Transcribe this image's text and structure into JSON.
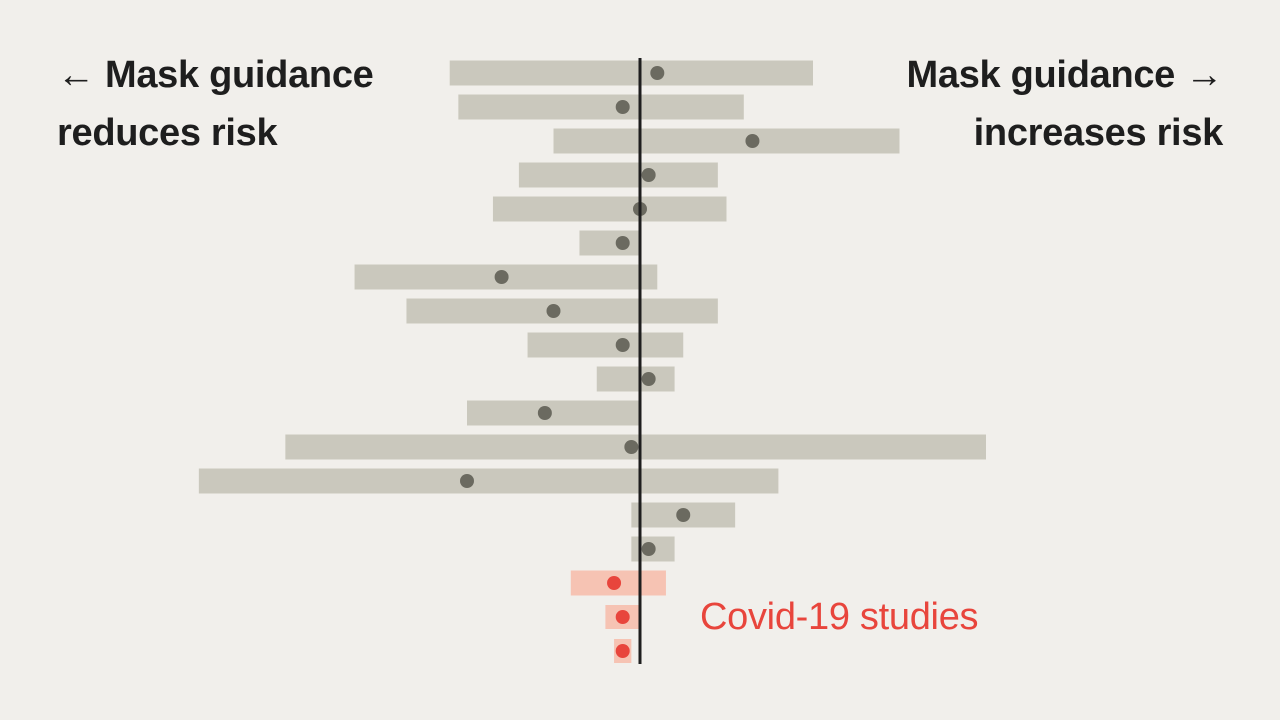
{
  "labels": {
    "left_arrow": "←",
    "left_line1": "Mask guidance",
    "left_line2": "reduces risk",
    "right_arrow": "→",
    "right_line1": "Mask guidance",
    "right_line2": "increases risk",
    "covid": "Covid-19 studies"
  },
  "colors": {
    "background": "#f1efeb",
    "bar": "#cac8bd",
    "dot": "#6b6a60",
    "covid_bar": "#f6c3b3",
    "covid_dot": "#e8453c",
    "reference_line": "#1e1e1e"
  },
  "chart_data": {
    "type": "forest",
    "reference_value": 1.0,
    "studies": [
      {
        "estimate": 1.02,
        "low": 0.78,
        "high": 1.2,
        "group": "other"
      },
      {
        "estimate": 0.98,
        "low": 0.79,
        "high": 1.12,
        "group": "other"
      },
      {
        "estimate": 1.13,
        "low": 0.9,
        "high": 1.3,
        "group": "other"
      },
      {
        "estimate": 1.01,
        "low": 0.86,
        "high": 1.09,
        "group": "other"
      },
      {
        "estimate": 1.0,
        "low": 0.83,
        "high": 1.1,
        "group": "other"
      },
      {
        "estimate": 0.98,
        "low": 0.93,
        "high": 1.0,
        "group": "other"
      },
      {
        "estimate": 0.84,
        "low": 0.67,
        "high": 1.02,
        "group": "other"
      },
      {
        "estimate": 0.9,
        "low": 0.73,
        "high": 1.09,
        "group": "other"
      },
      {
        "estimate": 0.98,
        "low": 0.87,
        "high": 1.05,
        "group": "other"
      },
      {
        "estimate": 1.01,
        "low": 0.95,
        "high": 1.04,
        "group": "other"
      },
      {
        "estimate": 0.89,
        "low": 0.8,
        "high": 1.0,
        "group": "other"
      },
      {
        "estimate": 0.99,
        "low": 0.59,
        "high": 1.4,
        "group": "other"
      },
      {
        "estimate": 0.8,
        "low": 0.49,
        "high": 1.16,
        "group": "other"
      },
      {
        "estimate": 1.05,
        "low": 0.99,
        "high": 1.11,
        "group": "other"
      },
      {
        "estimate": 1.01,
        "low": 0.99,
        "high": 1.04,
        "group": "other"
      },
      {
        "estimate": 0.97,
        "low": 0.92,
        "high": 1.03,
        "group": "covid"
      },
      {
        "estimate": 0.98,
        "low": 0.96,
        "high": 1.0,
        "group": "covid"
      },
      {
        "estimate": 0.98,
        "low": 0.97,
        "high": 0.99,
        "group": "covid"
      }
    ]
  }
}
